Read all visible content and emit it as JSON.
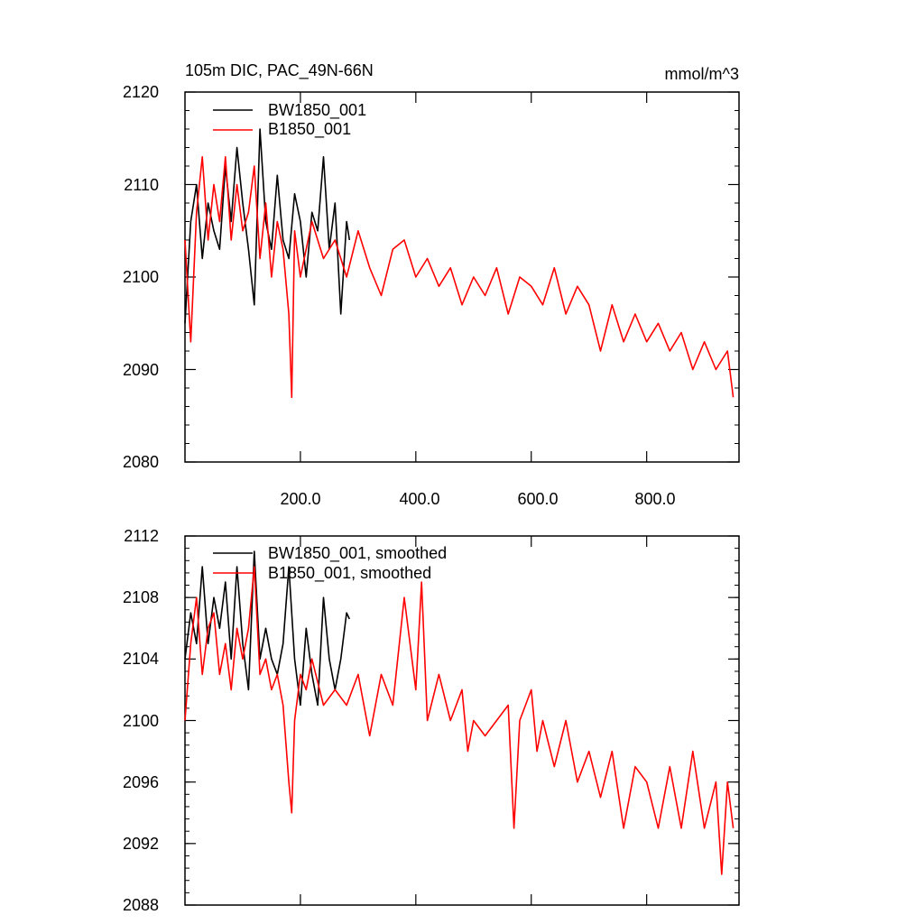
{
  "chart_data": [
    {
      "type": "line",
      "title": "105m DIC, PAC_49N-66N",
      "units": "mmol/m^3",
      "xlabel": "",
      "ylabel": "",
      "xlim": [
        0,
        960
      ],
      "ylim": [
        2080,
        2120
      ],
      "xticks": [
        200,
        400,
        600,
        800
      ],
      "xtick_labels": [
        "200.0",
        "400.0",
        "600.0",
        "800.0"
      ],
      "yticks": [
        2080,
        2090,
        2100,
        2110,
        2120
      ],
      "ytick_labels": [
        "2080",
        "2090",
        "2100",
        "2110",
        "2120"
      ],
      "legend_position": "top-left",
      "series": [
        {
          "name": "BW1850_001",
          "color": "#000000",
          "x": [
            0,
            10,
            20,
            30,
            40,
            50,
            60,
            70,
            80,
            90,
            100,
            110,
            120,
            130,
            140,
            150,
            160,
            170,
            180,
            190,
            200,
            210,
            220,
            230,
            240,
            250,
            260,
            270,
            280,
            285
          ],
          "y": [
            2095,
            2106,
            2110,
            2102,
            2108,
            2105,
            2103,
            2112,
            2106,
            2114,
            2108,
            2103,
            2097,
            2116,
            2106,
            2103,
            2111,
            2104,
            2102,
            2109,
            2106,
            2100,
            2107,
            2105,
            2113,
            2103,
            2108,
            2096,
            2106,
            2104
          ]
        },
        {
          "name": "B1850_001",
          "color": "#ff0000",
          "x": [
            0,
            10,
            20,
            30,
            40,
            50,
            60,
            70,
            80,
            90,
            100,
            110,
            120,
            130,
            140,
            150,
            160,
            170,
            180,
            185,
            190,
            200,
            220,
            240,
            260,
            280,
            300,
            320,
            340,
            360,
            380,
            400,
            420,
            440,
            460,
            480,
            500,
            520,
            540,
            560,
            580,
            600,
            620,
            640,
            660,
            680,
            700,
            720,
            740,
            760,
            780,
            800,
            820,
            840,
            860,
            880,
            900,
            920,
            940,
            950
          ],
          "y": [
            2104,
            2093,
            2107,
            2113,
            2104,
            2110,
            2106,
            2113,
            2104,
            2110,
            2105,
            2107,
            2112,
            2102,
            2108,
            2100,
            2106,
            2103,
            2096,
            2087,
            2105,
            2100,
            2106,
            2102,
            2104,
            2100,
            2105,
            2101,
            2098,
            2103,
            2104,
            2100,
            2102,
            2099,
            2101,
            2097,
            2100,
            2098,
            2101,
            2096,
            2100,
            2099,
            2097,
            2101,
            2096,
            2099,
            2097,
            2092,
            2097,
            2093,
            2096,
            2093,
            2095,
            2092,
            2094,
            2090,
            2093,
            2090,
            2092,
            2087
          ]
        }
      ]
    },
    {
      "type": "line",
      "title": "",
      "xlabel": "",
      "ylabel": "",
      "xlim": [
        0,
        960
      ],
      "ylim": [
        2088,
        2112
      ],
      "xticks": [
        200,
        400,
        600,
        800
      ],
      "yticks": [
        2088,
        2092,
        2096,
        2100,
        2104,
        2108,
        2112
      ],
      "ytick_labels": [
        "2088",
        "2092",
        "2096",
        "2100",
        "2104",
        "2108",
        "2112"
      ],
      "legend_position": "top-left",
      "series": [
        {
          "name": "BW1850_001, smoothed",
          "color": "#000000",
          "x": [
            0,
            10,
            20,
            30,
            40,
            50,
            60,
            70,
            80,
            90,
            100,
            110,
            120,
            130,
            140,
            150,
            160,
            170,
            180,
            190,
            200,
            210,
            220,
            230,
            240,
            250,
            260,
            270,
            280,
            285
          ],
          "y": [
            2104,
            2107,
            2105,
            2110,
            2105,
            2108,
            2106,
            2109,
            2104,
            2110,
            2105,
            2102,
            2111,
            2104,
            2106,
            2104,
            2103,
            2105,
            2110,
            2104,
            2101,
            2106,
            2103,
            2101,
            2108,
            2104,
            2102,
            2104,
            2107,
            2106.6
          ]
        },
        {
          "name": "B1850_001, smoothed",
          "color": "#ff0000",
          "x": [
            0,
            10,
            20,
            30,
            40,
            50,
            60,
            70,
            80,
            90,
            100,
            110,
            120,
            130,
            140,
            150,
            160,
            170,
            180,
            185,
            190,
            200,
            210,
            220,
            240,
            260,
            280,
            300,
            320,
            340,
            360,
            380,
            400,
            410,
            420,
            440,
            460,
            480,
            490,
            500,
            520,
            540,
            560,
            570,
            580,
            600,
            610,
            620,
            640,
            660,
            680,
            700,
            720,
            740,
            760,
            780,
            800,
            820,
            840,
            860,
            880,
            900,
            920,
            930,
            940,
            950
          ],
          "y": [
            2100,
            2105,
            2108,
            2103,
            2106,
            2107,
            2103,
            2105,
            2102,
            2106,
            2104,
            2106,
            2110,
            2103,
            2104,
            2102,
            2103,
            2101,
            2096,
            2094,
            2100,
            2103,
            2102,
            2104,
            2101,
            2102,
            2101,
            2103,
            2099,
            2103,
            2101,
            2108,
            2102,
            2109,
            2100,
            2103,
            2100,
            2102,
            2098,
            2100,
            2099,
            2100,
            2101,
            2093,
            2100,
            2102,
            2098,
            2100,
            2097,
            2100,
            2096,
            2098,
            2095,
            2098,
            2093,
            2097,
            2096,
            2093,
            2097,
            2093,
            2098,
            2093,
            2096,
            2090,
            2096,
            2093
          ]
        }
      ]
    }
  ]
}
